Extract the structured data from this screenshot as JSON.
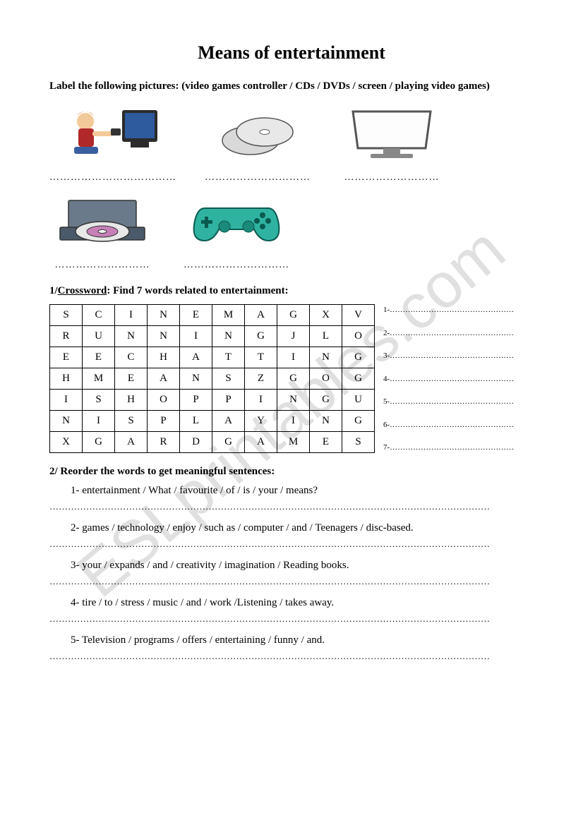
{
  "title": "Means of entertainment",
  "watermark": "ESLprintables.com",
  "label_instruction": "Label the following pictures: (video games controller / CDs / DVDs / screen / playing video games)",
  "dots_short": "……………………………",
  "dots_med": "…………………………",
  "dots_sm": "………………………",
  "row1_dots": [
    "………………………………",
    "…………………………",
    "………………………"
  ],
  "row2_dots": [
    "………………………",
    "…………………………"
  ],
  "crossword_heading_prefix": "1/",
  "crossword_heading_u": "Crossword",
  "crossword_heading_rest": ": Find 7 words related to entertainment:",
  "crossword": {
    "rows": [
      [
        "S",
        "C",
        "I",
        "N",
        "E",
        "M",
        "A",
        "G",
        "X",
        "V"
      ],
      [
        "R",
        "U",
        "N",
        "N",
        "I",
        "N",
        "G",
        "J",
        "L",
        "O"
      ],
      [
        "E",
        "E",
        "C",
        "H",
        "A",
        "T",
        "T",
        "I",
        "N",
        "G"
      ],
      [
        "H",
        "M",
        "E",
        "A",
        "N",
        "S",
        "Z",
        "G",
        "O",
        "G"
      ],
      [
        "I",
        "S",
        "H",
        "O",
        "P",
        "P",
        "I",
        "N",
        "G",
        "U"
      ],
      [
        "N",
        "I",
        "S",
        "P",
        "L",
        "A",
        "Y",
        "I",
        "N",
        "G"
      ],
      [
        "X",
        "G",
        "A",
        "R",
        "D",
        "G",
        "A",
        "M",
        "E",
        "S"
      ]
    ]
  },
  "answer_lines": [
    "1-…………………………………………",
    "2-…………………………………………",
    "3-…………………………………………",
    "4-…………………………………………",
    "5-…………………………………………",
    "6-…………………………………………",
    "7-…………………………………………"
  ],
  "reorder_heading": "2/ Reorder the words to get meaningful sentences:",
  "reorder_items": [
    "1-  entertainment / What / favourite / of / is / your / means?",
    "2-  games / technology / enjoy / such as / computer / and  / Teenagers / disc-based.",
    "3-  your / expands / and / creativity / imagination / Reading books.",
    "4-  tire / to / stress / music / and / work /Listening / takes away.",
    "5-  Television / programs / offers / entertaining / funny / and."
  ],
  "full_dots": "………………………………………………………………………………………………………………………………",
  "colors": {
    "controller": "#2fb3a0",
    "screen_frame": "#6b6b6b",
    "dvd_drive": "#6a7a8a",
    "disc": "#d9d9d9",
    "boy_hair": "#e07b2e",
    "boy_shirt": "#b02828",
    "tv_body": "#2b2b2b"
  }
}
